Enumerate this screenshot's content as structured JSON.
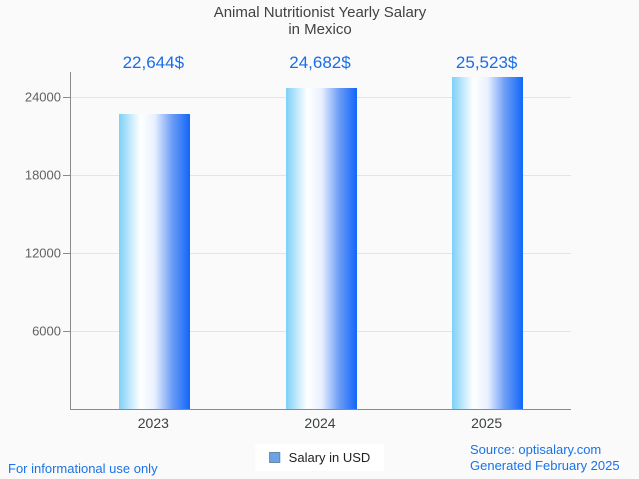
{
  "title": {
    "line1": "Animal Nutritionist Yearly Salary",
    "line2": "in Mexico"
  },
  "chart_data": {
    "type": "bar",
    "title": "Animal Nutritionist Yearly Salary in Mexico",
    "categories": [
      "2023",
      "2024",
      "2025"
    ],
    "series": [
      {
        "name": "Salary in USD",
        "values": [
          22644,
          24682,
          25523
        ]
      }
    ],
    "value_labels": [
      "22,644$",
      "24,682$",
      "25,523$"
    ],
    "xlabel": "",
    "ylabel": "",
    "ylim": [
      0,
      25900
    ],
    "yticks": [
      6000,
      12000,
      18000,
      24000
    ],
    "grid": true,
    "legend_position": "bottom"
  },
  "legend": {
    "label": "Salary in USD"
  },
  "footer": {
    "left": "For informational use only",
    "source": "Source: optisalary.com",
    "generated": "Generated February 2025"
  },
  "colors": {
    "value_label_blue": "#1a6de8",
    "footer_link_blue": "#1a73e8",
    "title_gray": "#424242",
    "axis_gray": "#8a8a8a",
    "grid_gray": "#e4e4e4",
    "bar_gradient_left": "#7ed0f8",
    "bar_gradient_white": "#ffffff",
    "bar_gradient_mid": "#6b9cf5",
    "bar_gradient_deep": "#1266fa",
    "legend_marker_fill": "#6ba3e8",
    "legend_marker_border": "#6d87a0",
    "background": "#fafafa"
  }
}
